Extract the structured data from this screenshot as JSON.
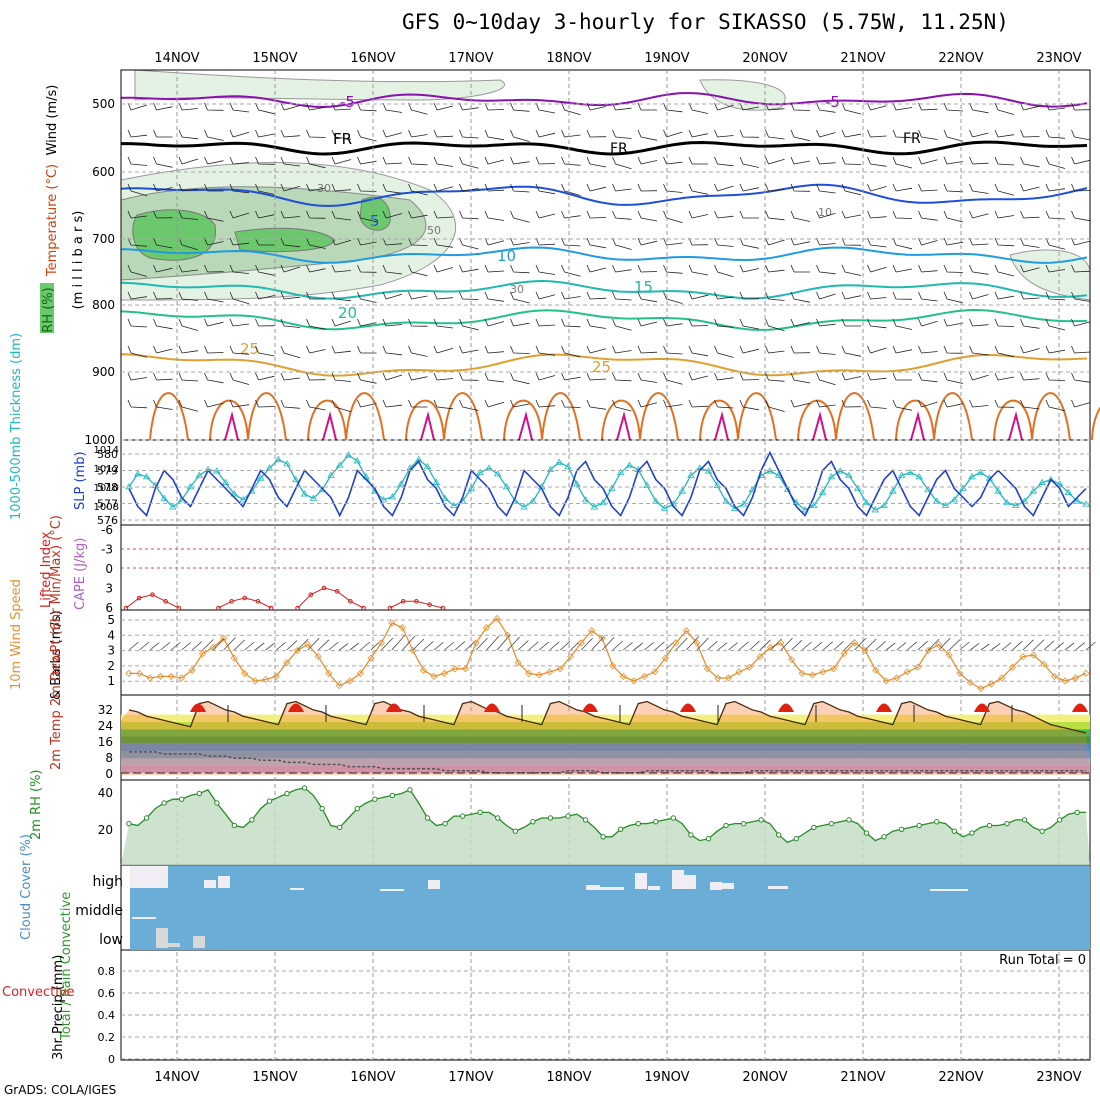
{
  "title": "GFS 0~10day 3-hourly for SIKASSO (5.75W, 11.25N)",
  "credit": "GrADS: COLA/IGES",
  "dates": [
    "14NOV",
    "15NOV",
    "16NOV",
    "17NOV",
    "18NOV",
    "19NOV",
    "20NOV",
    "21NOV",
    "22NOV",
    "23NOV"
  ],
  "colors": {
    "purple": "#8a10b0",
    "black": "#000000",
    "blue1": "#1d4fd8",
    "blue2": "#1f9be0",
    "teal1": "#20b8b0",
    "teal2": "#22c08a",
    "orange": "#e0a030",
    "hot": "#e07020",
    "magenta": "#d0108a",
    "rh_light": "#e4f2e4",
    "rh_mid": "#b8d8b8",
    "rh_dark": "#6cc86c",
    "slp": "#2040c8",
    "thick": "#20b8c0",
    "cape": "#cc2222",
    "wind10": "#e89030",
    "cloud": "#6aaed8"
  },
  "chart_data": [
    {
      "type": "contour",
      "panel": "upper-air",
      "ylabels": [
        "Wind (m/s)",
        "Temperature (°C)",
        "RH (%)",
        "(m i l l i b a r s)"
      ],
      "yticks": [
        "500",
        "600",
        "700",
        "800",
        "900",
        "1000"
      ],
      "ylim": [
        1000,
        450
      ],
      "rh_labels": [
        "30",
        "50",
        "10",
        "30"
      ],
      "isotherms": [
        {
          "label": "-5",
          "level": 500
        },
        {
          "label": "FR",
          "level": 560
        },
        {
          "label": "5",
          "level": 640
        },
        {
          "label": "10",
          "level": 715
        },
        {
          "label": "15",
          "level": 770
        },
        {
          "label": "20",
          "level": 820
        },
        {
          "label": "25",
          "level": 880
        }
      ]
    },
    {
      "type": "line",
      "panel": "slp-thickness",
      "ylabel_left": "1000-500mb Thickness (dm)",
      "ylabel_right": "SLP (mb)",
      "yticks_left": [
        "580",
        "579",
        "578",
        "577",
        "576"
      ],
      "yticks_right": [
        "1014",
        "1012",
        "1010",
        "1008"
      ],
      "series": [
        {
          "name": "SLP (mb)",
          "values": [
            1010,
            1008,
            1007,
            1010,
            1012,
            1011,
            1009,
            1008,
            1010,
            1012,
            1011,
            1010,
            1009,
            1008,
            1010,
            1012,
            1011,
            1009,
            1008,
            1010,
            1012,
            1011,
            1010,
            1009,
            1007,
            1009,
            1012,
            1011,
            1010,
            1008,
            1007,
            1009,
            1012,
            1013,
            1011,
            1010,
            1008,
            1007,
            1009,
            1012,
            1011,
            1010,
            1008,
            1007,
            1009,
            1012,
            1011,
            1010,
            1008,
            1007,
            1009,
            1012,
            1013,
            1011,
            1010,
            1008,
            1007,
            1009,
            1012,
            1013,
            1011,
            1010,
            1008,
            1007,
            1009,
            1012,
            1013,
            1011,
            1010,
            1008,
            1007,
            1009,
            1012,
            1014,
            1012,
            1010,
            1008,
            1007,
            1009,
            1012,
            1013,
            1011,
            1010,
            1008,
            1007,
            1009,
            1011,
            1012,
            1010,
            1008,
            1007,
            1009,
            1011,
            1012,
            1010,
            1009,
            1008,
            1009,
            1011,
            1012,
            1011,
            1010,
            1008,
            1007,
            1009,
            1011,
            1010,
            1008,
            1009,
            1010
          ]
        },
        {
          "name": "Thickness (dm)",
          "values": [
            578.3,
            579.2,
            579.0,
            578.4,
            577.5,
            576.9,
            577.4,
            578.3,
            579.1,
            579.5,
            579.4,
            578.6,
            577.8,
            577.4,
            578.0,
            578.9,
            579.6,
            580.2,
            579.9,
            578.8,
            577.8,
            577.5,
            578.1,
            579.1,
            579.8,
            580.5,
            580.1,
            579.0,
            578.0,
            577.4,
            577.6,
            578.5,
            579.6,
            580.2,
            579.7,
            578.6,
            577.5,
            577.0,
            577.3,
            578.2,
            579.3,
            579.6,
            579.2,
            578.3,
            577.3,
            576.9,
            577.3,
            578.3,
            579.5,
            580.0,
            579.7,
            578.5,
            577.4,
            576.9,
            577.2,
            578.2,
            579.3,
            579.8,
            579.5,
            578.4,
            577.3,
            576.8,
            577.1,
            578.0,
            579.1,
            579.6,
            579.4,
            578.4,
            577.3,
            576.8,
            577.1,
            578.1,
            579.1,
            579.4,
            579.1,
            578.1,
            577.2,
            576.7,
            577.0,
            577.9,
            579.0,
            579.4,
            579.1,
            578.2,
            577.2,
            576.7,
            577.0,
            578.0,
            579.1,
            579.3,
            579.0,
            578.1,
            577.3,
            577.0,
            577.4,
            578.2,
            579.0,
            579.3,
            578.9,
            578.0,
            577.2,
            577.0,
            577.3,
            578.0,
            578.6,
            578.8,
            578.5,
            577.9,
            577.3,
            577.1
          ]
        }
      ]
    },
    {
      "type": "line",
      "panel": "stability",
      "ylabel_left": "Lifted Index",
      "ylabel_right": "CAPE (J/kg)",
      "yticks": [
        "-6",
        "-3",
        "0",
        "3",
        "6"
      ],
      "series": [
        {
          "name": "Lifted Index",
          "values": [
            6,
            4.5,
            4,
            5,
            6,
            null,
            null,
            6,
            5,
            4.5,
            5,
            6,
            null,
            6,
            4,
            3,
            3.5,
            5,
            6,
            null,
            6,
            5,
            5,
            5.5,
            6
          ]
        }
      ]
    },
    {
      "type": "line",
      "panel": "wind10m",
      "ylabel_left": "10m Wind Speed",
      "ylabel_right": "& Barbs (m/s)",
      "yticks": [
        "5",
        "4",
        "3",
        "2",
        "1"
      ],
      "series": [
        {
          "name": "10m Wind Speed",
          "values": [
            1.5,
            1.5,
            1.2,
            1.3,
            1.3,
            1.2,
            1.7,
            2.8,
            3.2,
            3.8,
            2.5,
            1.5,
            1.0,
            1.1,
            1.3,
            2.2,
            3.0,
            3.4,
            2.6,
            1.5,
            0.7,
            1.0,
            1.5,
            2.5,
            3.5,
            4.8,
            4.5,
            3.0,
            1.7,
            1.3,
            1.5,
            1.8,
            1.8,
            3.5,
            4.5,
            5.1,
            4.0,
            2.2,
            1.5,
            1.4,
            1.6,
            1.8,
            2.6,
            3.5,
            4.3,
            3.8,
            2.0,
            1.3,
            1.0,
            1.3,
            1.6,
            2.5,
            3.5,
            4.3,
            3.5,
            1.8,
            1.2,
            1.2,
            1.6,
            1.9,
            2.6,
            3.2,
            3.5,
            2.4,
            1.5,
            1.4,
            1.6,
            1.8,
            2.8,
            3.5,
            3.0,
            1.7,
            1.0,
            1.2,
            1.6,
            1.9,
            3.0,
            3.4,
            2.7,
            1.5,
            0.9,
            0.5,
            0.8,
            1.2,
            1.9,
            2.6,
            2.7,
            2.1,
            1.3,
            1.0,
            1.2,
            1.5
          ]
        }
      ]
    },
    {
      "type": "area",
      "panel": "temperature",
      "ylabel": "2m Temp 2m DewPt (6hr Min/Max) (°C)",
      "yticks": [
        "32",
        "24",
        "16",
        "8",
        "0"
      ],
      "series": [
        {
          "name": "2m Temp",
          "values": [
            31,
            30,
            28,
            27,
            26,
            25,
            24,
            23,
            34,
            35,
            33,
            31,
            30,
            28,
            27,
            26,
            25,
            24,
            34,
            35,
            33,
            31,
            30,
            28,
            27,
            26,
            25,
            24,
            34,
            35,
            33,
            31,
            30,
            28,
            27,
            26,
            25,
            24,
            34,
            35,
            33,
            31,
            30,
            28,
            27,
            26,
            25,
            24,
            34,
            35,
            33,
            31,
            30,
            28,
            27,
            26,
            25,
            24,
            34,
            35,
            33,
            31,
            30,
            28,
            27,
            26,
            25,
            24,
            34,
            35,
            33,
            31,
            30,
            28,
            27,
            26,
            25,
            24,
            34,
            35,
            33,
            31,
            30,
            28,
            27,
            26,
            25,
            24,
            34,
            35,
            33,
            31,
            30,
            28,
            27,
            26,
            25,
            24,
            34,
            35,
            33,
            31,
            30,
            28,
            26,
            24,
            23,
            22,
            21,
            20
          ]
        },
        {
          "name": "2m DewPt",
          "values": [
            11,
            11,
            11,
            11,
            10,
            10,
            10,
            10,
            10,
            9,
            9,
            9,
            8,
            8,
            8,
            7,
            7,
            7,
            6,
            6,
            6,
            5,
            5,
            5,
            5,
            4,
            4,
            4,
            4,
            3,
            3,
            3,
            3,
            3,
            3,
            3,
            2,
            2,
            2,
            2,
            2,
            1,
            1,
            1,
            1,
            1,
            1,
            1,
            1,
            1,
            2,
            2,
            2,
            2,
            1,
            1,
            1,
            1,
            1,
            2,
            2,
            2,
            2,
            2,
            2,
            2,
            2,
            1,
            1,
            1,
            1,
            2,
            2,
            2,
            2,
            2,
            2,
            2,
            2,
            2,
            2,
            2,
            2,
            2,
            2,
            2,
            2,
            2,
            2,
            2,
            2,
            2,
            2,
            2,
            2,
            2,
            2,
            2,
            2,
            2,
            2,
            2,
            2,
            2,
            2,
            2,
            2,
            2,
            2,
            2
          ]
        }
      ]
    },
    {
      "type": "area",
      "panel": "rh2m",
      "ylabel": "2m RH (%)",
      "yticks": [
        "40",
        "20"
      ],
      "series": [
        {
          "name": "2m RH",
          "values": [
            22,
            21,
            25,
            30,
            33,
            35,
            35,
            37,
            38,
            40,
            33,
            27,
            21,
            20,
            24,
            30,
            34,
            36,
            38,
            40,
            41,
            37,
            30,
            21,
            20,
            25,
            30,
            33,
            35,
            36,
            37,
            38,
            40,
            33,
            25,
            21,
            22,
            26,
            26,
            27,
            28,
            28,
            25,
            21,
            18,
            20,
            23,
            25,
            25,
            25,
            26,
            27,
            24,
            20,
            15,
            15,
            19,
            21,
            22,
            22,
            23,
            24,
            25,
            22,
            16,
            13,
            14,
            18,
            21,
            22,
            22,
            23,
            24,
            22,
            16,
            12,
            14,
            17,
            20,
            21,
            22,
            23,
            24,
            22,
            17,
            13,
            15,
            18,
            19,
            20,
            21,
            22,
            23,
            22,
            18,
            15,
            17,
            20,
            21,
            21,
            22,
            24,
            24,
            20,
            18,
            20,
            24,
            27,
            28,
            28
          ]
        }
      ]
    },
    {
      "type": "bar",
      "panel": "cloud",
      "ylabel": "Cloud Cover (%)",
      "rows": [
        "high",
        "middle",
        "low"
      ]
    },
    {
      "type": "bar",
      "panel": "precip",
      "ylabel_left": "Total / Rain Convective",
      "ylabel_right": "3hr Precip (mm)",
      "yticks": [
        "0.8",
        "0.6",
        "0.4",
        "0.2",
        "0"
      ],
      "run_total": "Run Total = 0",
      "values": []
    }
  ]
}
